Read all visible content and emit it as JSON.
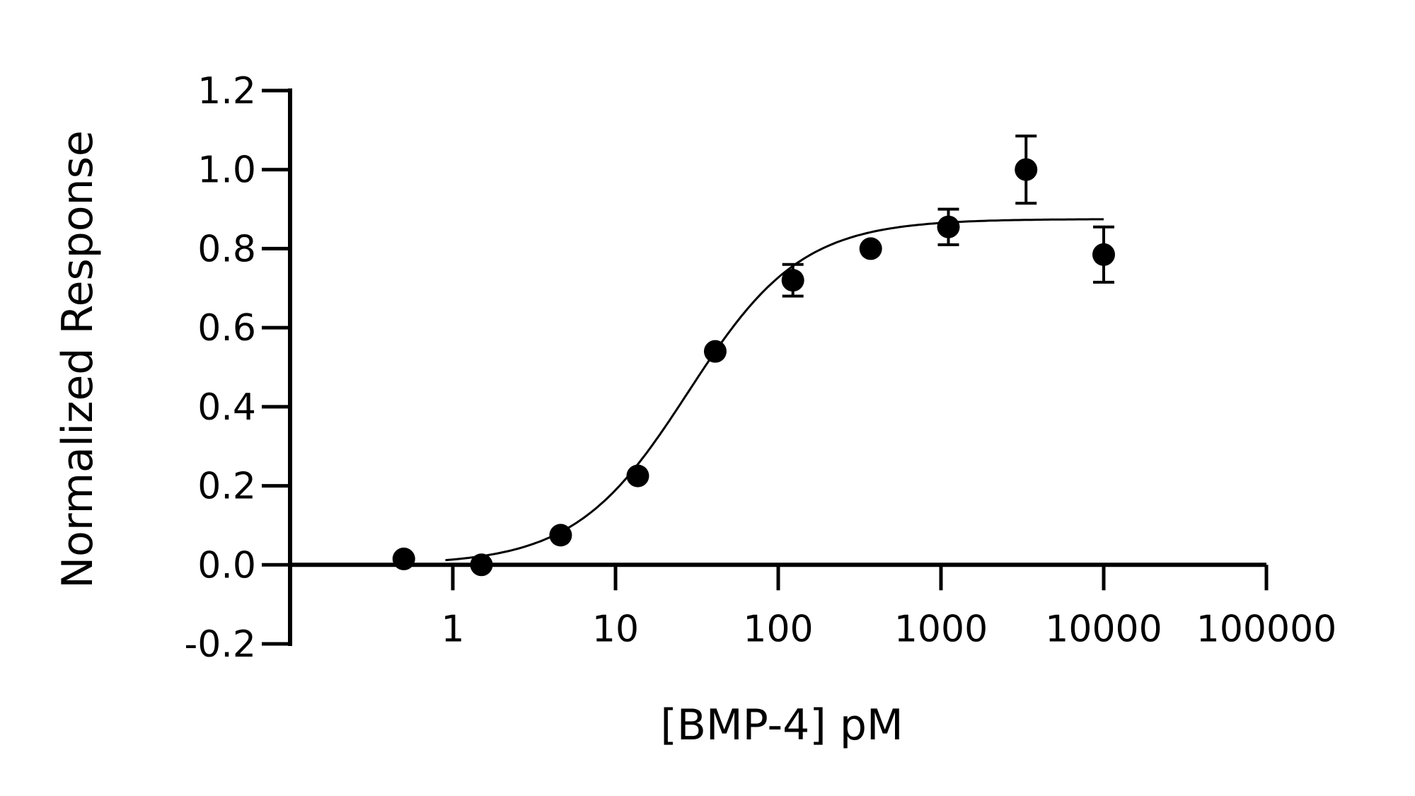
{
  "chart_data": {
    "type": "scatter",
    "xlabel": "[BMP-4] pM",
    "ylabel": "Normalized Response",
    "x_scale": "log",
    "xlim": [
      0.1,
      100000
    ],
    "ylim": [
      -0.2,
      1.2
    ],
    "x_ticks": [
      1,
      10,
      100,
      1000,
      10000,
      100000
    ],
    "x_tick_labels": [
      "1",
      "10",
      "100",
      "1000",
      "10000",
      "100000"
    ],
    "y_ticks": [
      -0.2,
      0.0,
      0.2,
      0.4,
      0.6,
      0.8,
      1.0,
      1.2
    ],
    "y_tick_labels": [
      "-0.2",
      "0.0",
      "0.2",
      "0.4",
      "0.6",
      "0.8",
      "1.0",
      "1.2"
    ],
    "grid": false,
    "series": [
      {
        "points": [
          {
            "x": 0.5,
            "y": 0.015,
            "err": 0
          },
          {
            "x": 1.5,
            "y": 0.0,
            "err": 0
          },
          {
            "x": 4.6,
            "y": 0.075,
            "err": 0
          },
          {
            "x": 13.7,
            "y": 0.225,
            "err": 0
          },
          {
            "x": 41,
            "y": 0.54,
            "err": 0
          },
          {
            "x": 123,
            "y": 0.72,
            "err": 0.04
          },
          {
            "x": 370,
            "y": 0.8,
            "err": 0
          },
          {
            "x": 1111,
            "y": 0.855,
            "err": 0.045
          },
          {
            "x": 3333,
            "y": 1.0,
            "err": 0.085
          },
          {
            "x": 10000,
            "y": 0.785,
            "err": 0.07
          }
        ]
      }
    ],
    "fit_curve": {
      "model": "four-parameter logistic",
      "bottom": 0.0,
      "top": 0.875,
      "ec50": 28,
      "hill": 1.25,
      "x_range": [
        0.9,
        10000
      ]
    }
  }
}
